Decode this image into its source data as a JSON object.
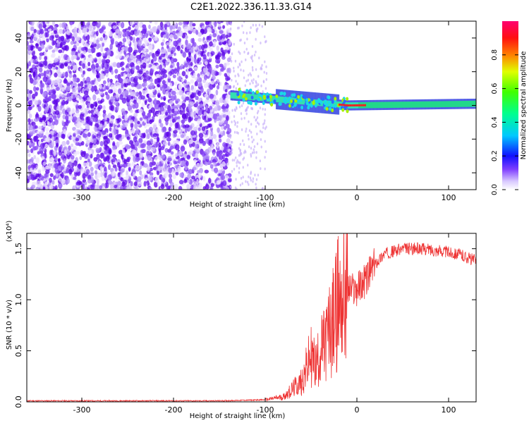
{
  "title": "C2E1.2022.336.11.33.G14",
  "chart_data": [
    {
      "type": "heatmap",
      "xlabel": "Height of straight line (km)",
      "ylabel": "Frequency (Hz)",
      "xlim": [
        -360,
        130
      ],
      "ylim": [
        -50,
        50
      ],
      "xticks": [
        -300,
        -200,
        -100,
        0,
        100
      ],
      "yticks": [
        -40,
        -20,
        0,
        20,
        40
      ],
      "colorbar": {
        "label": "Normalized spectral amplitude",
        "range": [
          0,
          1
        ],
        "ticks": [
          0.0,
          0.2,
          0.4,
          0.6,
          0.8
        ]
      },
      "regions": {
        "noise_x": [
          -360,
          -138
        ],
        "signal_band_x": [
          -138,
          130
        ],
        "signal_freq_start_hz": 6,
        "signal_freq_end_hz": 1
      }
    },
    {
      "type": "line",
      "xlabel": "Height of straight line (km)",
      "ylabel": "SNR (10 * v/v)",
      "multiplier_label": "(x10⁴)",
      "xlim": [
        -360,
        130
      ],
      "ylim": [
        0,
        1.65
      ],
      "xticks": [
        -300,
        -200,
        -100,
        0,
        100
      ],
      "yticks": [
        0.0,
        0.5,
        1.0,
        1.5
      ],
      "series": [
        {
          "color": "#ee3333",
          "x": [
            -360,
            -150,
            -100,
            -80,
            -60,
            -50,
            -45,
            -40,
            -35,
            -30,
            -25,
            -20,
            -15,
            -10,
            0,
            10,
            20,
            30,
            50,
            70,
            90,
            110,
            130
          ],
          "y": [
            0.01,
            0.01,
            0.02,
            0.05,
            0.2,
            0.45,
            0.35,
            0.5,
            0.55,
            0.7,
            0.8,
            1.0,
            1.05,
            1.1,
            1.1,
            1.2,
            1.35,
            1.45,
            1.5,
            1.5,
            1.48,
            1.45,
            1.38
          ]
        }
      ]
    }
  ]
}
